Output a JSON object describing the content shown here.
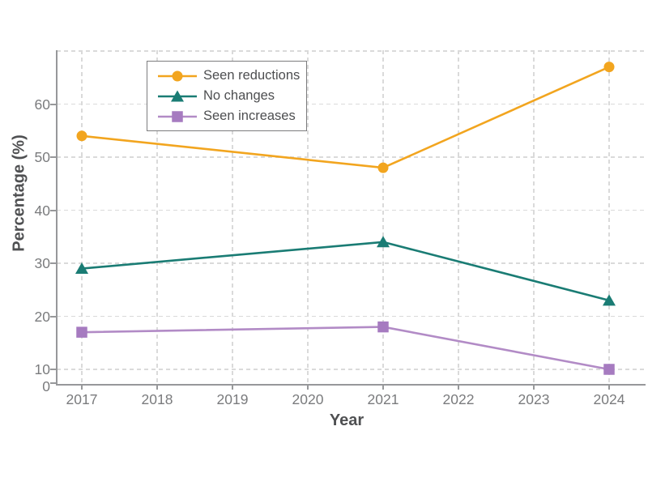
{
  "chart_data": {
    "type": "line",
    "title": "",
    "xlabel": "Year",
    "ylabel": "Percentage (%)",
    "x": [
      2017,
      2021,
      2024
    ],
    "series": [
      {
        "name": "Seen reductions",
        "marker": "circle",
        "line_color": "#F2A51F",
        "marker_color": "#F2A51F",
        "values": [
          54,
          48,
          67
        ]
      },
      {
        "name": "No changes",
        "marker": "triangle",
        "line_color": "#1A7C74",
        "marker_color": "#1A7C74",
        "values": [
          29,
          34,
          23
        ]
      },
      {
        "name": "Seen increases",
        "marker": "square",
        "line_color": "#B28BC6",
        "marker_color": "#A67BC0",
        "values": [
          17,
          18,
          10
        ]
      }
    ],
    "x_ticks": [
      2017,
      2018,
      2019,
      2020,
      2021,
      2022,
      2023,
      2024
    ],
    "y_ticks": [
      0,
      10,
      20,
      30,
      40,
      50,
      60
    ],
    "y_gridlines": [
      10,
      20,
      30,
      40,
      50,
      60,
      70
    ],
    "ylim": [
      0,
      70
    ],
    "grid": "dashed",
    "legend_position": "upper-left-inside",
    "colors": {
      "background": "#FFFFFF",
      "grid": "#DADADA",
      "spine": "#97989A",
      "tick_label": "#7A7B7D",
      "axis_title": "#4F5052",
      "legend_text": "#4D4E50",
      "legend_border": "#7C7C7E"
    }
  }
}
